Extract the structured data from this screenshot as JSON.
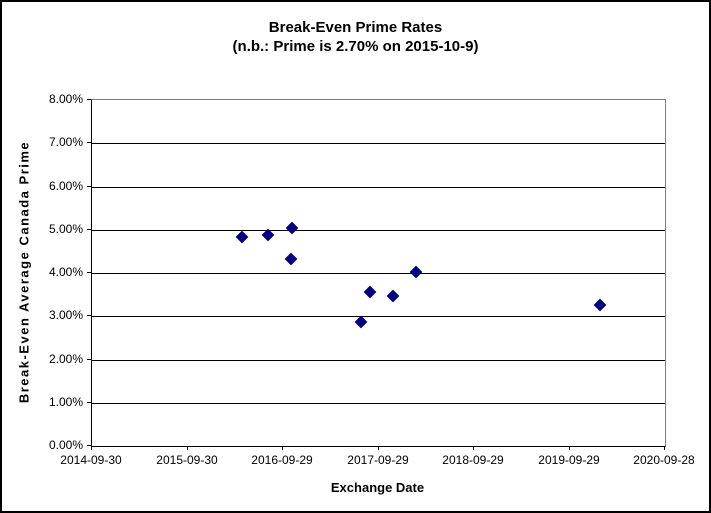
{
  "chart_data": {
    "type": "scatter",
    "title": "Break-Even Prime Rates",
    "subtitle": "(n.b.: Prime is 2.70% on 2015-10-9)",
    "xlabel": "Exchange Date",
    "ylabel": "Break-Even Average Canada Prime",
    "grid": "horizontal",
    "legend": "none",
    "x_axis": {
      "type": "date",
      "min": "2014-09-30",
      "max": "2020-09-28",
      "tick_labels": [
        "2014-09-30",
        "2015-09-30",
        "2016-09-29",
        "2017-09-29",
        "2018-09-29",
        "2019-09-29",
        "2020-09-28"
      ]
    },
    "y_axis": {
      "min": 0,
      "max": 8,
      "unit": "%",
      "tick_labels": [
        "0.00%",
        "1.00%",
        "2.00%",
        "3.00%",
        "4.00%",
        "5.00%",
        "6.00%",
        "7.00%",
        "8.00%"
      ]
    },
    "series": [
      {
        "name": "Break-Even Average Canada Prime",
        "marker": "diamond",
        "color": "#000080",
        "points": [
          {
            "date": "2016-04-26",
            "value": 4.83
          },
          {
            "date": "2016-08-03",
            "value": 4.88
          },
          {
            "date": "2016-10-29",
            "value": 4.33
          },
          {
            "date": "2016-11-02",
            "value": 5.05
          },
          {
            "date": "2017-07-26",
            "value": 2.87
          },
          {
            "date": "2017-08-26",
            "value": 3.56
          },
          {
            "date": "2017-11-25",
            "value": 3.47
          },
          {
            "date": "2018-02-21",
            "value": 4.02
          },
          {
            "date": "2020-01-25",
            "value": 3.27
          }
        ]
      }
    ],
    "colors": {
      "marker": "#000080",
      "gridline": "#000000",
      "plot_border": "#808080",
      "axis_line": "#000000",
      "text": "#000000",
      "background": "#ffffff"
    }
  }
}
